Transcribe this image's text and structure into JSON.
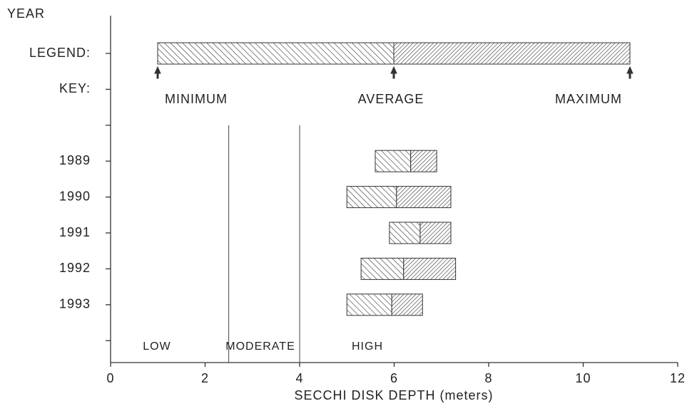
{
  "chart_data": {
    "type": "range_bar",
    "ylabel": "YEAR",
    "xlabel": "SECCHI DISK DEPTH (meters)",
    "legend_label": "LEGEND:",
    "key_label": "KEY:",
    "legend_entries": [
      "MINIMUM",
      "AVERAGE",
      "MAXIMUM"
    ],
    "categories": [
      "1989",
      "1990",
      "1991",
      "1992",
      "1993"
    ],
    "min": [
      5.6,
      5.0,
      5.9,
      5.3,
      5.0
    ],
    "avg": [
      6.35,
      6.05,
      6.55,
      6.2,
      5.95
    ],
    "max": [
      6.9,
      7.2,
      7.2,
      7.3,
      6.6
    ],
    "thresholds": [
      2.5,
      4
    ],
    "zones": [
      "LOW",
      "MODERATE",
      "HIGH"
    ],
    "xlim": [
      0,
      12
    ],
    "xticks": [
      0,
      2,
      4,
      6,
      8,
      10,
      12
    ]
  }
}
